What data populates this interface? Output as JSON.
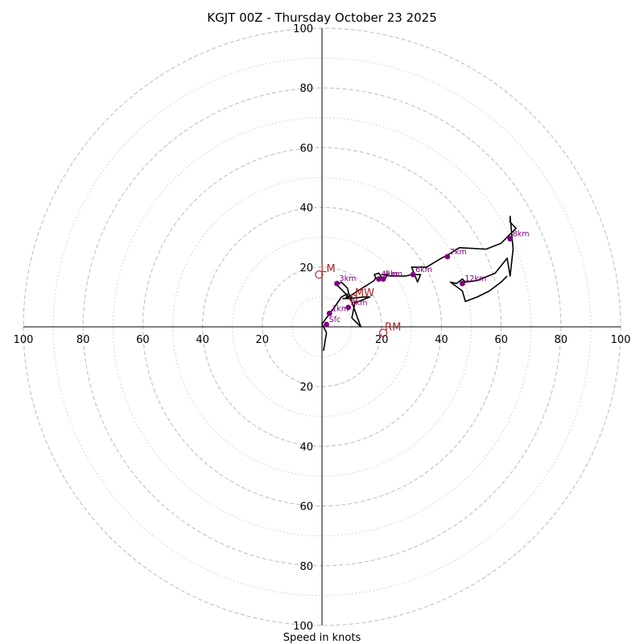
{
  "chart_data": {
    "type": "scatter",
    "subtype": "hodograph",
    "title": "KGJT 00Z - Thursday October 23 2025",
    "xlabel": "Speed in knots",
    "ylabel": "",
    "xlim": [
      -100,
      100
    ],
    "ylim": [
      -100,
      100
    ],
    "rings": {
      "major": [
        20,
        40,
        60,
        80,
        100
      ],
      "minor": [
        10,
        30,
        50,
        70,
        90
      ]
    },
    "x_ticks": [
      "100",
      "80",
      "60",
      "40",
      "20",
      "20",
      "40",
      "60",
      "80",
      "100"
    ],
    "x_tick_values": [
      -100,
      -80,
      -60,
      -40,
      -20,
      20,
      40,
      60,
      80,
      100
    ],
    "y_ticks": [
      "100",
      "80",
      "60",
      "40",
      "20",
      "20",
      "40",
      "60",
      "80",
      "100"
    ],
    "y_tick_values": [
      100,
      80,
      60,
      40,
      20,
      -20,
      -40,
      -60,
      -80,
      -100
    ],
    "colors": {
      "trace": "#000000",
      "marker": "#800080",
      "motion": "#b22222",
      "grid": "#bbbbbb"
    },
    "trace": {
      "u": [
        0.5,
        1.0,
        1.5,
        0.0,
        1.5,
        3.0,
        4.5,
        6.5,
        8.5,
        8.0,
        7.0,
        9.5,
        14,
        16,
        11,
        10,
        13,
        9,
        8.5,
        6.5,
        5,
        9,
        10,
        8,
        17.5,
        18,
        17.5,
        19,
        20,
        21,
        22,
        20,
        23,
        28,
        30,
        33,
        32,
        30,
        35,
        40,
        42,
        46,
        55,
        60,
        63,
        65,
        63,
        63,
        64,
        63,
        62,
        58,
        52,
        48,
        47,
        45,
        43,
        47,
        48,
        52,
        56,
        60,
        62
      ],
      "v": [
        -8,
        -5,
        -2,
        1,
        3,
        5,
        7,
        10,
        11,
        9.5,
        9.5,
        9.5,
        10,
        10,
        8,
        3,
        0,
        11,
        13,
        15,
        14,
        10,
        10,
        9.5,
        15.5,
        16.5,
        17.5,
        18,
        16.5,
        16,
        17.5,
        17.5,
        17,
        17,
        17.5,
        17.5,
        15,
        20,
        20,
        23,
        24,
        26.5,
        26,
        28,
        31,
        33,
        35,
        37,
        26,
        17,
        23,
        18,
        15.5,
        15,
        16,
        14.5,
        15,
        12,
        8.5,
        10,
        12,
        15,
        17
      ]
    },
    "height_markers": [
      {
        "label": "Sfc",
        "u": 1.5,
        "v": 0.8
      },
      {
        "label": "1km",
        "u": 2.5,
        "v": 4.5
      },
      {
        "label": "2km",
        "u": 8.8,
        "v": 6.5
      },
      {
        "label": "3km",
        "u": 5.0,
        "v": 14.5
      },
      {
        "label": "4km",
        "u": 19.0,
        "v": 16.0
      },
      {
        "label": "5km",
        "u": 20.5,
        "v": 16.0
      },
      {
        "label": "6km",
        "u": 30.5,
        "v": 17.5
      },
      {
        "label": "7km",
        "u": 42.0,
        "v": 23.5
      },
      {
        "label": "8km",
        "u": 63.0,
        "v": 29.5
      },
      {
        "label": "12km",
        "u": 47.0,
        "v": 14.5
      }
    ],
    "storm_motion": [
      {
        "label": "LM",
        "u": -1.0,
        "v": 17.5
      },
      {
        "label": "MW",
        "u": 10.5,
        "v": 9.5
      },
      {
        "label": "RM",
        "u": 20.5,
        "v": -2.0
      }
    ]
  }
}
